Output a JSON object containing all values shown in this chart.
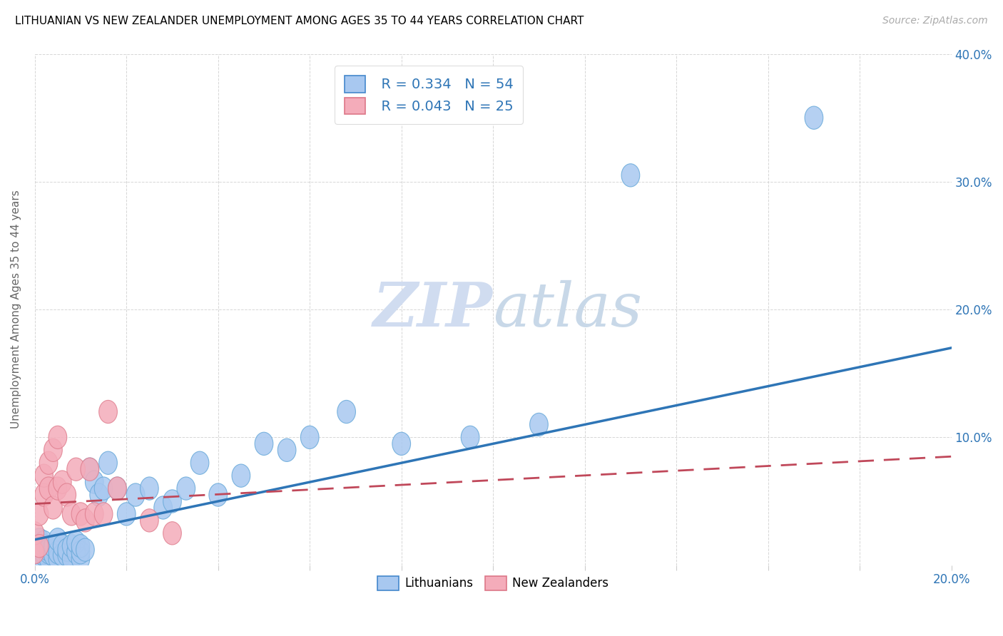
{
  "title": "LITHUANIAN VS NEW ZEALANDER UNEMPLOYMENT AMONG AGES 35 TO 44 YEARS CORRELATION CHART",
  "source": "Source: ZipAtlas.com",
  "ylabel": "Unemployment Among Ages 35 to 44 years",
  "xlim": [
    0.0,
    0.2
  ],
  "ylim": [
    0.0,
    0.4
  ],
  "xticks": [
    0.0,
    0.02,
    0.04,
    0.06,
    0.08,
    0.1,
    0.12,
    0.14,
    0.16,
    0.18,
    0.2
  ],
  "xticklabels": [
    "0.0%",
    "",
    "",
    "",
    "",
    "",
    "",
    "",
    "",
    "",
    "20.0%"
  ],
  "yticks": [
    0.0,
    0.1,
    0.2,
    0.3,
    0.4
  ],
  "yticklabels": [
    "",
    "10.0%",
    "20.0%",
    "30.0%",
    "40.0%"
  ],
  "lit_color": "#A8C8F0",
  "nz_color": "#F4ACBA",
  "lit_edge_color": "#6aaada",
  "nz_edge_color": "#e08090",
  "lit_line_color": "#2E75B6",
  "nz_line_color": "#C0485A",
  "watermark_color": "#D0DCF0",
  "legend_R_lit": "R = 0.334",
  "legend_N_lit": "N = 54",
  "legend_R_nz": "R = 0.043",
  "legend_N_nz": "N = 25",
  "lit_x": [
    0.0,
    0.0,
    0.001,
    0.001,
    0.001,
    0.001,
    0.002,
    0.002,
    0.002,
    0.002,
    0.003,
    0.003,
    0.003,
    0.004,
    0.004,
    0.005,
    0.005,
    0.005,
    0.006,
    0.006,
    0.007,
    0.007,
    0.008,
    0.008,
    0.009,
    0.009,
    0.01,
    0.01,
    0.01,
    0.011,
    0.012,
    0.013,
    0.014,
    0.015,
    0.016,
    0.018,
    0.02,
    0.022,
    0.025,
    0.028,
    0.03,
    0.033,
    0.036,
    0.04,
    0.045,
    0.05,
    0.055,
    0.06,
    0.068,
    0.08,
    0.095,
    0.11,
    0.13,
    0.17
  ],
  "lit_y": [
    0.01,
    0.015,
    0.005,
    0.01,
    0.012,
    0.02,
    0.008,
    0.01,
    0.015,
    0.018,
    0.005,
    0.01,
    0.012,
    0.008,
    0.015,
    0.005,
    0.01,
    0.02,
    0.008,
    0.015,
    0.008,
    0.012,
    0.005,
    0.015,
    0.01,
    0.018,
    0.005,
    0.01,
    0.015,
    0.012,
    0.075,
    0.065,
    0.055,
    0.06,
    0.08,
    0.06,
    0.04,
    0.055,
    0.06,
    0.045,
    0.05,
    0.06,
    0.08,
    0.055,
    0.07,
    0.095,
    0.09,
    0.1,
    0.12,
    0.095,
    0.1,
    0.11,
    0.305,
    0.35
  ],
  "nz_x": [
    0.0,
    0.0,
    0.001,
    0.001,
    0.002,
    0.002,
    0.003,
    0.003,
    0.004,
    0.004,
    0.005,
    0.005,
    0.006,
    0.007,
    0.008,
    0.009,
    0.01,
    0.011,
    0.012,
    0.013,
    0.015,
    0.016,
    0.018,
    0.025,
    0.03
  ],
  "nz_y": [
    0.01,
    0.025,
    0.015,
    0.04,
    0.055,
    0.07,
    0.06,
    0.08,
    0.045,
    0.09,
    0.06,
    0.1,
    0.065,
    0.055,
    0.04,
    0.075,
    0.04,
    0.035,
    0.075,
    0.04,
    0.04,
    0.12,
    0.06,
    0.035,
    0.025
  ],
  "lit_trend_x0": 0.0,
  "lit_trend_y0": 0.02,
  "lit_trend_x1": 0.2,
  "lit_trend_y1": 0.17,
  "nz_trend_x0": 0.0,
  "nz_trend_y0": 0.048,
  "nz_trend_x1": 0.2,
  "nz_trend_y1": 0.085
}
